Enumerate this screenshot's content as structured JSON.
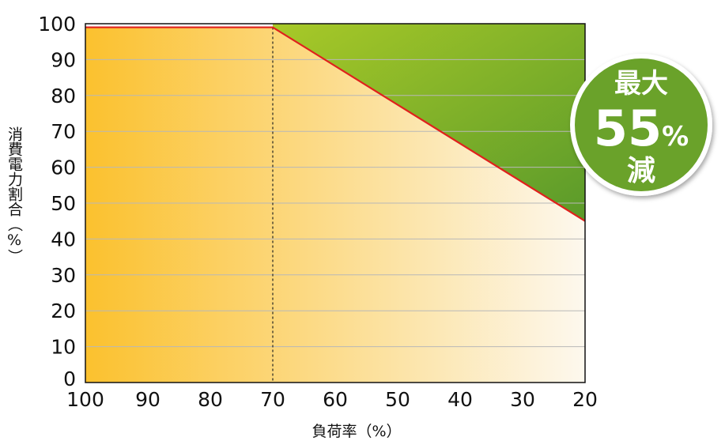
{
  "chart_data": {
    "type": "line",
    "xlabel": "負荷率（%）",
    "ylabel": "消費電力割合（%）",
    "x_ticks": [
      "100",
      "90",
      "80",
      "70",
      "60",
      "50",
      "40",
      "30",
      "20"
    ],
    "y_ticks": [
      "0",
      "10",
      "20",
      "30",
      "40",
      "50",
      "60",
      "70",
      "80",
      "90",
      "100"
    ],
    "xlim": [
      100,
      20
    ],
    "ylim": [
      0,
      100
    ],
    "grid": true,
    "series": [
      {
        "x": [
          100,
          70,
          20
        ],
        "y": [
          99,
          99,
          45
        ],
        "color": "#e0201c"
      }
    ],
    "reference_line": {
      "x": 70,
      "style": "dashed"
    },
    "regions": {
      "constant_fill_colors": [
        "#fbc12e",
        "#fdf8ee"
      ],
      "saving_fill_colors": [
        "#a8c928",
        "#5a9a2a"
      ]
    },
    "badge": {
      "line1": "最大",
      "line2_number": "55",
      "line2_unit": "%",
      "line3": "減",
      "color": "#6aa22c",
      "ring_color": "#ffffff"
    }
  }
}
